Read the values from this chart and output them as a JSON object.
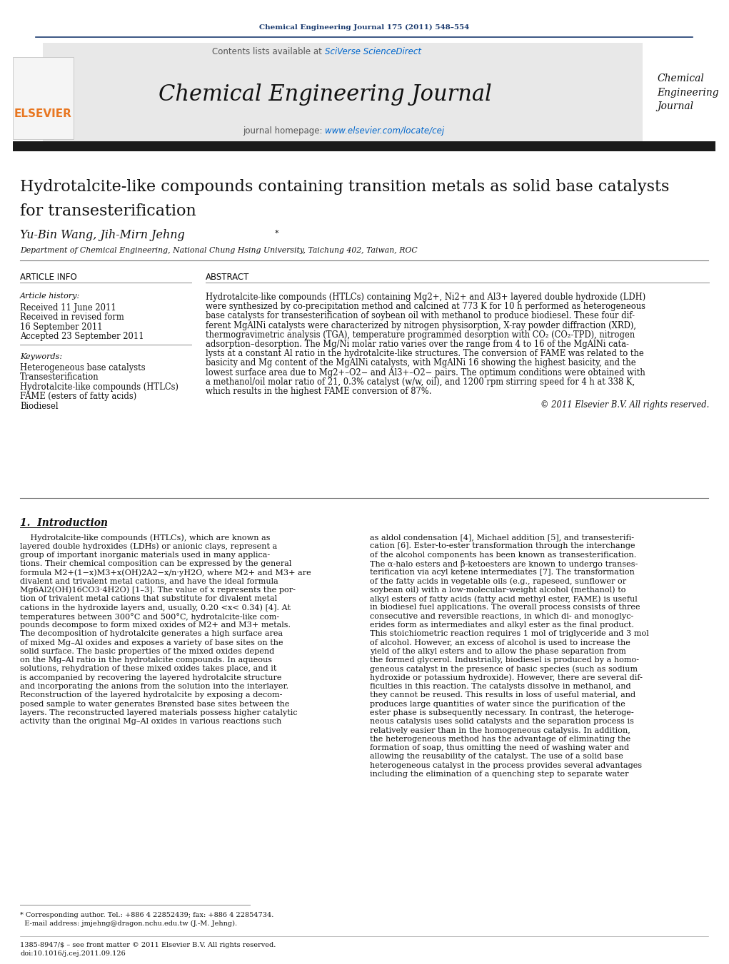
{
  "page_bg": "#ffffff",
  "journal_ref_text": "Chemical Engineering Journal 175 (2011) 548–554",
  "journal_ref_color": "#1a3a6e",
  "contents_text": "Contents lists available at ",
  "sciverse_text": "SciVerse ScienceDirect",
  "sciverse_color": "#0066cc",
  "journal_title": "Chemical Engineering Journal",
  "journal_homepage_prefix": "journal homepage: ",
  "journal_homepage_url": "www.elsevier.com/locate/cej",
  "journal_homepage_color": "#0066cc",
  "sidebar_journal_title": "Chemical\nEngineering\nJournal",
  "black_bar_color": "#1a1a1a",
  "article_title_line1": "Hydrotalcite-like compounds containing transition metals as solid base catalysts",
  "article_title_line2": "for transesterification",
  "authors_main": "Yu-Bin Wang, Jih-Mirn Jehng",
  "affiliation": "Department of Chemical Engineering, National Chung Hsing University, Taichung 402, Taiwan, ROC",
  "article_info_header": "ARTICLE INFO",
  "abstract_header": "ABSTRACT",
  "article_history_label": "Article history:",
  "article_history": [
    "Received 11 June 2011",
    "Received in revised form",
    "16 September 2011",
    "Accepted 23 September 2011"
  ],
  "keywords_label": "Keywords:",
  "keywords": [
    "Heterogeneous base catalysts",
    "Transesterification",
    "Hydrotalcite-like compounds (HTLCs)",
    "FAME (esters of fatty acids)",
    "Biodiesel"
  ],
  "copyright_text": "© 2011 Elsevier B.V. All rights reserved.",
  "header_line_color": "#1a3a6e",
  "elsevier_color": "#e87722",
  "gray_header_bg": "#e8e8e8",
  "text_color": "#000000",
  "link_color": "#0066cc",
  "abstract_lines": [
    "Hydrotalcite-like compounds (HTLCs) containing Mg2+, Ni2+ and Al3+ layered double hydroxide (LDH)",
    "were synthesized by co-precipitation method and calcined at 773 K for 10 h performed as heterogeneous",
    "base catalysts for transesterification of soybean oil with methanol to produce biodiesel. These four dif-",
    "ferent MgAlNi catalysts were characterized by nitrogen physisorption, X-ray powder diffraction (XRD),",
    "thermogravimetric analysis (TGA), temperature programmed desorption with CO₂ (CO₂-TPD), nitrogen",
    "adsorption–desorption. The Mg/Ni molar ratio varies over the range from 4 to 16 of the MgAlNi cata-",
    "lysts at a constant Al ratio in the hydrotalcite-like structures. The conversion of FAME was related to the",
    "basicity and Mg content of the MgAlNi catalysts, with MgAlNi 16 showing the highest basicity, and the",
    "lowest surface area due to Mg2+–O2− and Al3+–O2− pairs. The optimum conditions were obtained with",
    "a methanol/oil molar ratio of 21, 0.3% catalyst (w/w, oil), and 1200 rpm stirring speed for 4 h at 338 K,",
    "which results in the highest FAME conversion of 87%."
  ],
  "intro_col1_lines": [
    "    Hydrotalcite-like compounds (HTLCs), which are known as",
    "layered double hydroxides (LDHs) or anionic clays, represent a",
    "group of important inorganic materials used in many applica-",
    "tions. Their chemical composition can be expressed by the general",
    "formula M2+(1−x)M3+x(OH)2A2−x/n·yH2O, where M2+ and M3+ are",
    "divalent and trivalent metal cations, and have the ideal formula",
    "Mg6Al2(OH)16CO3·4H2O) [1–3]. The value of x represents the por-",
    "tion of trivalent metal cations that substitute for divalent metal",
    "cations in the hydroxide layers and, usually, 0.20 <x< 0.34) [4]. At",
    "temperatures between 300°C and 500°C, hydrotalcite-like com-",
    "pounds decompose to form mixed oxides of M2+ and M3+ metals.",
    "The decomposition of hydrotalcite generates a high surface area",
    "of mixed Mg–Al oxides and exposes a variety of base sites on the",
    "solid surface. The basic properties of the mixed oxides depend",
    "on the Mg–Al ratio in the hydrotalcite compounds. In aqueous",
    "solutions, rehydration of these mixed oxides takes place, and it",
    "is accompanied by recovering the layered hydrotalcite structure",
    "and incorporating the anions from the solution into the interlayer.",
    "Reconstruction of the layered hydrotalcite by exposing a decom-",
    "posed sample to water generates Brønsted base sites between the",
    "layers. The reconstructed layered materials possess higher catalytic",
    "activity than the original Mg–Al oxides in various reactions such"
  ],
  "intro_col2_lines": [
    "as aldol condensation [4], Michael addition [5], and transesterifi-",
    "cation [6]. Ester-to-ester transformation through the interchange",
    "of the alcohol components has been known as transesterification.",
    "The α-halo esters and β-ketoesters are known to undergo transes-",
    "terification via acyl ketene intermediates [7]. The transformation",
    "of the fatty acids in vegetable oils (e.g., rapeseed, sunflower or",
    "soybean oil) with a low-molecular-weight alcohol (methanol) to",
    "alkyl esters of fatty acids (fatty acid methyl ester, FAME) is useful",
    "in biodiesel fuel applications. The overall process consists of three",
    "consecutive and reversible reactions, in which di- and monoglyc-",
    "erides form as intermediates and alkyl ester as the final product.",
    "This stoichiometric reaction requires 1 mol of triglyceride and 3 mol",
    "of alcohol. However, an excess of alcohol is used to increase the",
    "yield of the alkyl esters and to allow the phase separation from",
    "the formed glycerol. Industrially, biodiesel is produced by a homo-",
    "geneous catalyst in the presence of basic species (such as sodium",
    "hydroxide or potassium hydroxide). However, there are several dif-",
    "ficulties in this reaction. The catalysts dissolve in methanol, and",
    "they cannot be reused. This results in loss of useful material, and",
    "produces large quantities of water since the purification of the",
    "ester phase is subsequently necessary. In contrast, the heteroge-",
    "neous catalysis uses solid catalysts and the separation process is",
    "relatively easier than in the homogeneous catalysis. In addition,",
    "the heterogeneous method has the advantage of eliminating the",
    "formation of soap, thus omitting the need of washing water and",
    "allowing the reusability of the catalyst. The use of a solid base",
    "heterogeneous catalyst in the process provides several advantages",
    "including the elimination of a quenching step to separate water"
  ],
  "footnote_line1": "* Corresponding author. Tel.: +886 4 22852439; fax: +886 4 22854734.",
  "footnote_line2": "  E-mail address: jmjehng@dragon.nchu.edu.tw (J.-M. Jehng).",
  "footer_line1": "1385-8947/$ – see front matter © 2011 Elsevier B.V. All rights reserved.",
  "footer_line2": "doi:10.1016/j.cej.2011.09.126"
}
